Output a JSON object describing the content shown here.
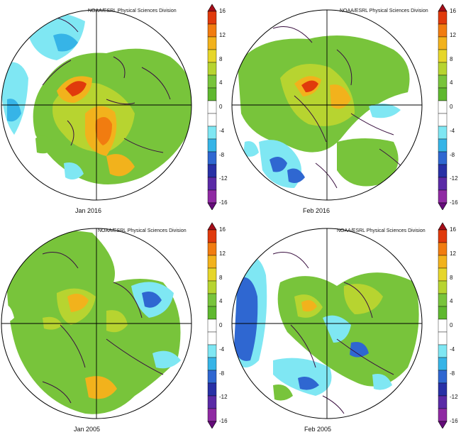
{
  "credit": "NOAA/ESRL Physical Sciences Division",
  "colorbar": {
    "ticks": [
      "16",
      "12",
      "8",
      "4",
      "0",
      "-4",
      "-8",
      "-12",
      "-16"
    ],
    "colors": [
      "#a50d18",
      "#e03a0c",
      "#f17c10",
      "#f2b21c",
      "#e6d62a",
      "#b7d430",
      "#78c43b",
      "#5fb82f",
      "#ffffff",
      "#ffffff",
      "#7fe7f3",
      "#36b4e7",
      "#2f67d1",
      "#2830a6",
      "#5a2aa6",
      "#8f2aa3",
      "#650b7a"
    ]
  },
  "panels": [
    {
      "id": "jan-2016",
      "caption": "Jan  2016"
    },
    {
      "id": "feb-2016",
      "caption": "Feb  2016"
    },
    {
      "id": "jan-2005",
      "caption": "Jan  2005"
    },
    {
      "id": "feb-2005",
      "caption": "Feb  2005"
    }
  ]
}
